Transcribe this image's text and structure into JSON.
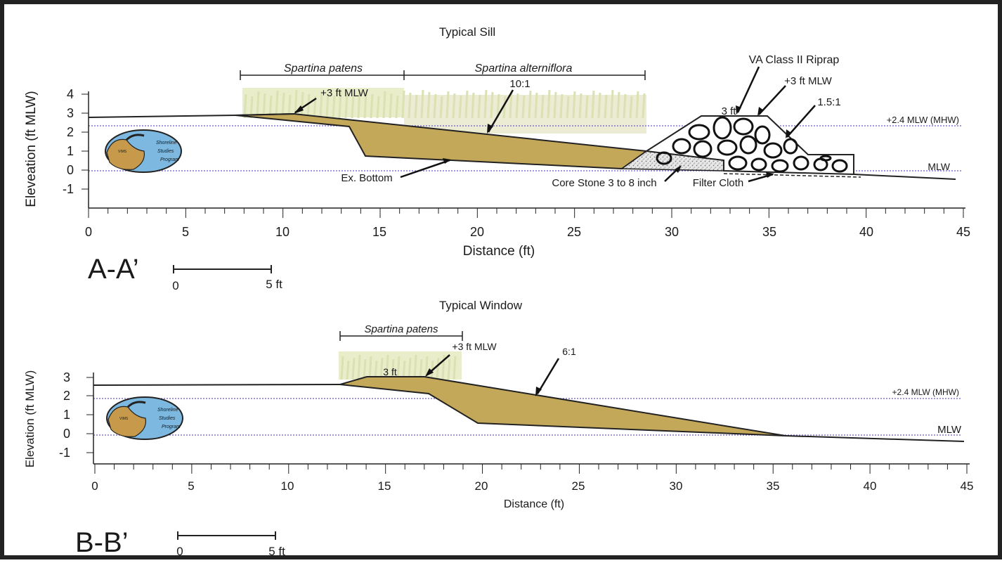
{
  "panel_a": {
    "title": "Typical Sill",
    "section_label": "A-A’",
    "ylabel": "Eleveation (ft MLW)",
    "xlabel": "Distance (ft)",
    "x_ticks": [
      "0",
      "5",
      "10",
      "15",
      "20",
      "25",
      "30",
      "35",
      "40",
      "45"
    ],
    "y_ticks": [
      "4",
      "3",
      "2",
      "1",
      "0",
      "-1"
    ],
    "veg_patens": "Spartina patens",
    "veg_alterniflora": "Spartina alterniflora",
    "slope_label": "10:1",
    "riprap_slope": "1.5:1",
    "riprap_label": "VA Class II Riprap",
    "crest_width": "3 ft",
    "riprap_elev": "+3 ft MLW",
    "marsh_elev": "+3 ft MLW",
    "bottom_label": "Ex. Bottom",
    "core_label": "Core Stone 3 to 8 inch",
    "filter_label": "Filter Cloth",
    "mhw_label": "+2.4 MLW (MHW)",
    "mlw_label": "MLW",
    "scale_zero": "0",
    "scale_five": "5 ft"
  },
  "panel_b": {
    "title": "Typical Window",
    "section_label": "B-B’",
    "ylabel": "Elevation (ft MLW)",
    "xlabel": "Distance (ft)",
    "x_ticks": [
      "0",
      "5",
      "10",
      "15",
      "20",
      "25",
      "30",
      "35",
      "40",
      "45"
    ],
    "y_ticks": [
      "3",
      "2",
      "1",
      "0",
      "-1"
    ],
    "veg_patens": "Spartina patens",
    "slope_label": "6:1",
    "crest_width": "3 ft",
    "marsh_elev": "+3 ft MLW",
    "mhw_label": "+2.4 MLW (MHW)",
    "mlw_label": "MLW",
    "scale_zero": "0",
    "scale_five": "5 ft"
  },
  "logo": {
    "line1": "Shoreline",
    "line2": "Studies",
    "line3": "Program",
    "mark": "VIMS"
  },
  "colors": {
    "fill": "#c4a85a",
    "waterline": "#6a5acd",
    "grass": "#d8e0a0",
    "logo_water": "#7db8e0",
    "logo_land": "#c69a4a"
  }
}
